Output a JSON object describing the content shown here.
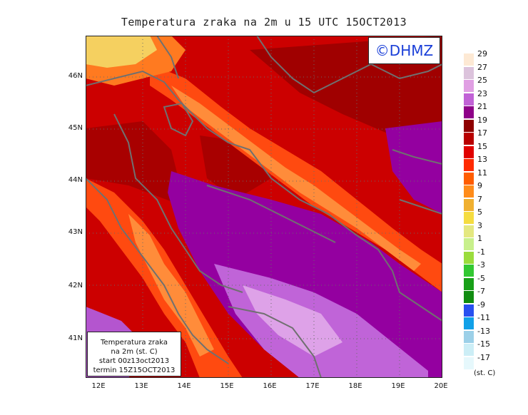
{
  "title": "Temperatura zraka na 2m u 15 UTC 15OCT2013",
  "copyright": "©DHMZ",
  "infobox": {
    "line1": "Temperatura zraka",
    "line2": "na 2m (st. C)",
    "line3": "start 00z13oct2013",
    "line4": "termin 15Z15OCT2013"
  },
  "lat_ticks": [
    "46N",
    "45N",
    "44N",
    "43N",
    "42N",
    "41N"
  ],
  "lon_ticks": [
    "12E",
    "13E",
    "14E",
    "15E",
    "16E",
    "17E",
    "18E",
    "19E",
    "20E"
  ],
  "legend": {
    "unit": "(st. C)",
    "labels": [
      "29",
      "27",
      "25",
      "23",
      "21",
      "19",
      "17",
      "15",
      "13",
      "11",
      "9",
      "7",
      "5",
      "3",
      "1",
      "-1",
      "-3",
      "-5",
      "-7",
      "-9",
      "-11",
      "-13",
      "-15",
      "-17"
    ],
    "colors": [
      "#fde9d4",
      "#dcc3dc",
      "#e09fe3",
      "#c162d6",
      "#8e0088",
      "#8e0000",
      "#b80000",
      "#e00000",
      "#ff2a00",
      "#ff5d00",
      "#ff8c1a",
      "#f0b030",
      "#f5dc40",
      "#e4e880",
      "#c8f08c",
      "#9adc3c",
      "#32c832",
      "#18a018",
      "#108c10",
      "#2850f0",
      "#10a0e8",
      "#9cd0e8",
      "#cceef6",
      "#e6f8fc"
    ]
  },
  "colors": {
    "coast": "#707070",
    "sea_cool": "#9400a0",
    "land_warm": "#b80000"
  }
}
